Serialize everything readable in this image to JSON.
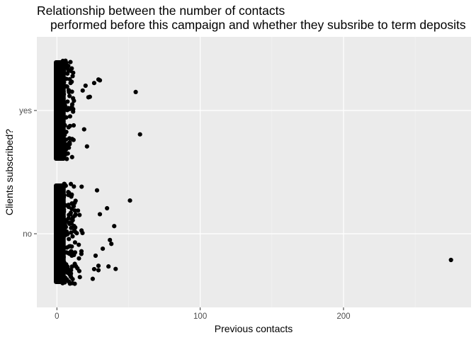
{
  "chart_data": {
    "type": "scatter",
    "title": "Relationship between the number of contacts",
    "subtitle": "performed before this campaign and whether they subsribe to term deposits",
    "xlabel": "Previous contacts",
    "ylabel": "Clients subscribed?",
    "categories": [
      "no",
      "yes"
    ],
    "xlim": [
      -14,
      289
    ],
    "x_ticks": [
      0,
      100,
      200
    ],
    "x_tick_labels": [
      "0",
      "100",
      "200"
    ],
    "y_tick_labels": [
      "no",
      "yes"
    ],
    "grid": true,
    "jitter_height": 0.4,
    "outliers": [
      {
        "x": 275,
        "y": "no"
      },
      {
        "x": 51,
        "y": "no"
      },
      {
        "x": 37,
        "y": "no"
      },
      {
        "x": 40,
        "y": "no"
      },
      {
        "x": 41,
        "y": "no"
      },
      {
        "x": 38,
        "y": "no"
      },
      {
        "x": 35,
        "y": "no"
      },
      {
        "x": 36,
        "y": "no"
      },
      {
        "x": 30,
        "y": "no"
      },
      {
        "x": 29,
        "y": "no"
      },
      {
        "x": 32,
        "y": "no"
      },
      {
        "x": 29,
        "y": "no"
      },
      {
        "x": 27,
        "y": "no"
      },
      {
        "x": 28,
        "y": "no"
      },
      {
        "x": 26,
        "y": "no"
      },
      {
        "x": 25,
        "y": "no"
      },
      {
        "x": 58,
        "y": "yes"
      },
      {
        "x": 55,
        "y": "yes"
      },
      {
        "x": 30,
        "y": "yes"
      },
      {
        "x": 29,
        "y": "yes"
      },
      {
        "x": 26,
        "y": "yes"
      },
      {
        "x": 23,
        "y": "yes"
      },
      {
        "x": 21,
        "y": "yes"
      },
      {
        "x": 22,
        "y": "yes"
      },
      {
        "x": 19,
        "y": "yes"
      },
      {
        "x": 20,
        "y": "yes"
      },
      {
        "x": 18,
        "y": "yes"
      }
    ],
    "colors": {
      "panel": "#ebebeb",
      "grid_major": "#ffffff",
      "grid_minor": "#f5f5f5",
      "point": "#000000",
      "tick": "#333333"
    }
  }
}
